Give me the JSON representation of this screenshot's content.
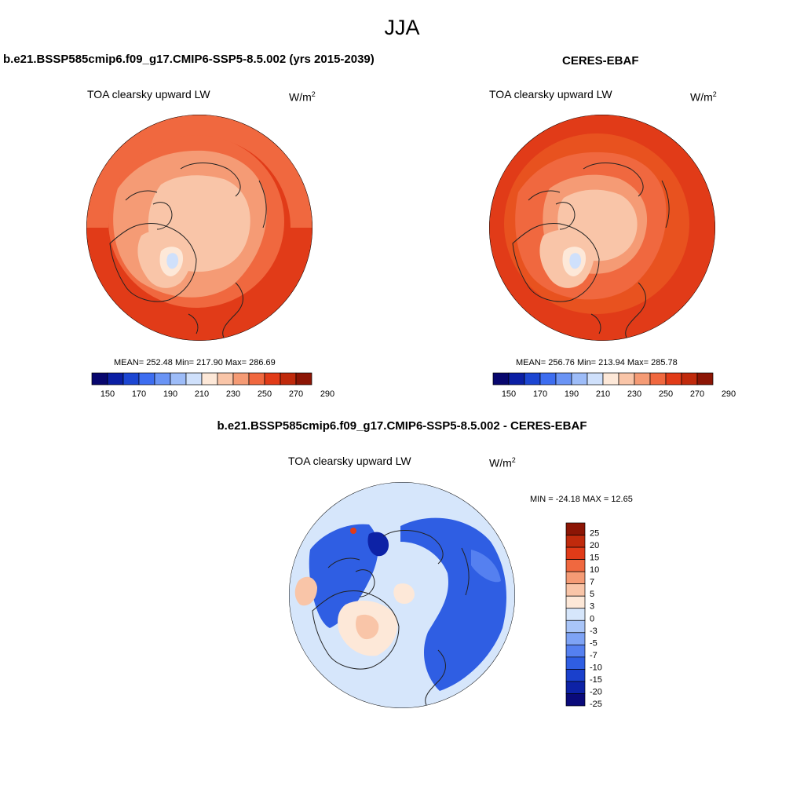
{
  "season": "JJA",
  "panels": [
    {
      "title": "b.e21.BSSP585cmip6.f09_g17.CMIP6-SSP5-8.5.002 (yrs 2015-2039)",
      "variable": "TOA clearsky upward LW",
      "units_base": "W/m",
      "units_sup": "2",
      "mean": "252.48",
      "min": "217.90",
      "max": "286.69",
      "stats_text": "MEAN= 252.48  Min= 217.90  Max= 286.69",
      "colorbar_ticks": [
        "150",
        "170",
        "190",
        "210",
        "230",
        "250",
        "270",
        "290"
      ]
    },
    {
      "title": "CERES-EBAF",
      "variable": "TOA clearsky upward LW",
      "units_base": "W/m",
      "units_sup": "2",
      "mean": "256.76",
      "min": "213.94",
      "max": "285.78",
      "stats_text": "MEAN= 256.76  Min= 213.94  Max= 285.78",
      "colorbar_ticks": [
        "150",
        "170",
        "190",
        "210",
        "230",
        "250",
        "270",
        "290"
      ]
    },
    {
      "title": "b.e21.BSSP585cmip6.f09_g17.CMIP6-SSP5-8.5.002 - CERES-EBAF",
      "variable": "TOA clearsky upward LW",
      "units_base": "W/m",
      "units_sup": "2",
      "stats_text": "MIN = -24.18 MAX =  12.65",
      "colorbar_ticks": [
        "25",
        "20",
        "15",
        "10",
        "7",
        "5",
        "3",
        "0",
        "-3",
        "-5",
        "-7",
        "-10",
        "-15",
        "-20",
        "-25"
      ]
    }
  ],
  "colors": {
    "abs_palette": [
      "#08076e",
      "#0b1fa4",
      "#1c46d2",
      "#3d6df0",
      "#6a94f5",
      "#9dbcf8",
      "#cfe0fb",
      "#fde8d8",
      "#f9c5a8",
      "#f59b75",
      "#f0683f",
      "#e13b18",
      "#c02a0c",
      "#8c1505"
    ],
    "diff_palette": [
      "#8c1505",
      "#c02a0c",
      "#e13b18",
      "#f0683f",
      "#f59b75",
      "#f9c5a8",
      "#fde8d8",
      "#d6e6fb",
      "#a9c5f8",
      "#7ea3f5",
      "#5580f0",
      "#2f5ee3",
      "#1a40cc",
      "#0d22a6",
      "#0a0a7a"
    ]
  },
  "chart_data": [
    {
      "type": "heatmap",
      "projection": "north-polar-stereographic",
      "title": "b.e21.BSSP585cmip6.f09_g17.CMIP6-SSP5-8.5.002 (yrs 2015-2039)",
      "variable": "TOA clearsky upward LW",
      "units": "W/m2",
      "mean": 252.48,
      "min": 217.9,
      "max": 286.69,
      "levels": [
        150,
        160,
        170,
        180,
        190,
        200,
        210,
        220,
        230,
        240,
        250,
        260,
        270,
        280,
        290
      ]
    },
    {
      "type": "heatmap",
      "projection": "north-polar-stereographic",
      "title": "CERES-EBAF",
      "variable": "TOA clearsky upward LW",
      "units": "W/m2",
      "mean": 256.76,
      "min": 213.94,
      "max": 285.78,
      "levels": [
        150,
        160,
        170,
        180,
        190,
        200,
        210,
        220,
        230,
        240,
        250,
        260,
        270,
        280,
        290
      ]
    },
    {
      "type": "heatmap",
      "projection": "north-polar-stereographic",
      "title": "b.e21.BSSP585cmip6.f09_g17.CMIP6-SSP5-8.5.002 - CERES-EBAF",
      "variable": "TOA clearsky upward LW",
      "units": "W/m2",
      "min": -24.18,
      "max": 12.65,
      "levels": [
        -25,
        -20,
        -15,
        -10,
        -7,
        -5,
        -3,
        0,
        3,
        5,
        7,
        10,
        15,
        20,
        25
      ]
    }
  ]
}
